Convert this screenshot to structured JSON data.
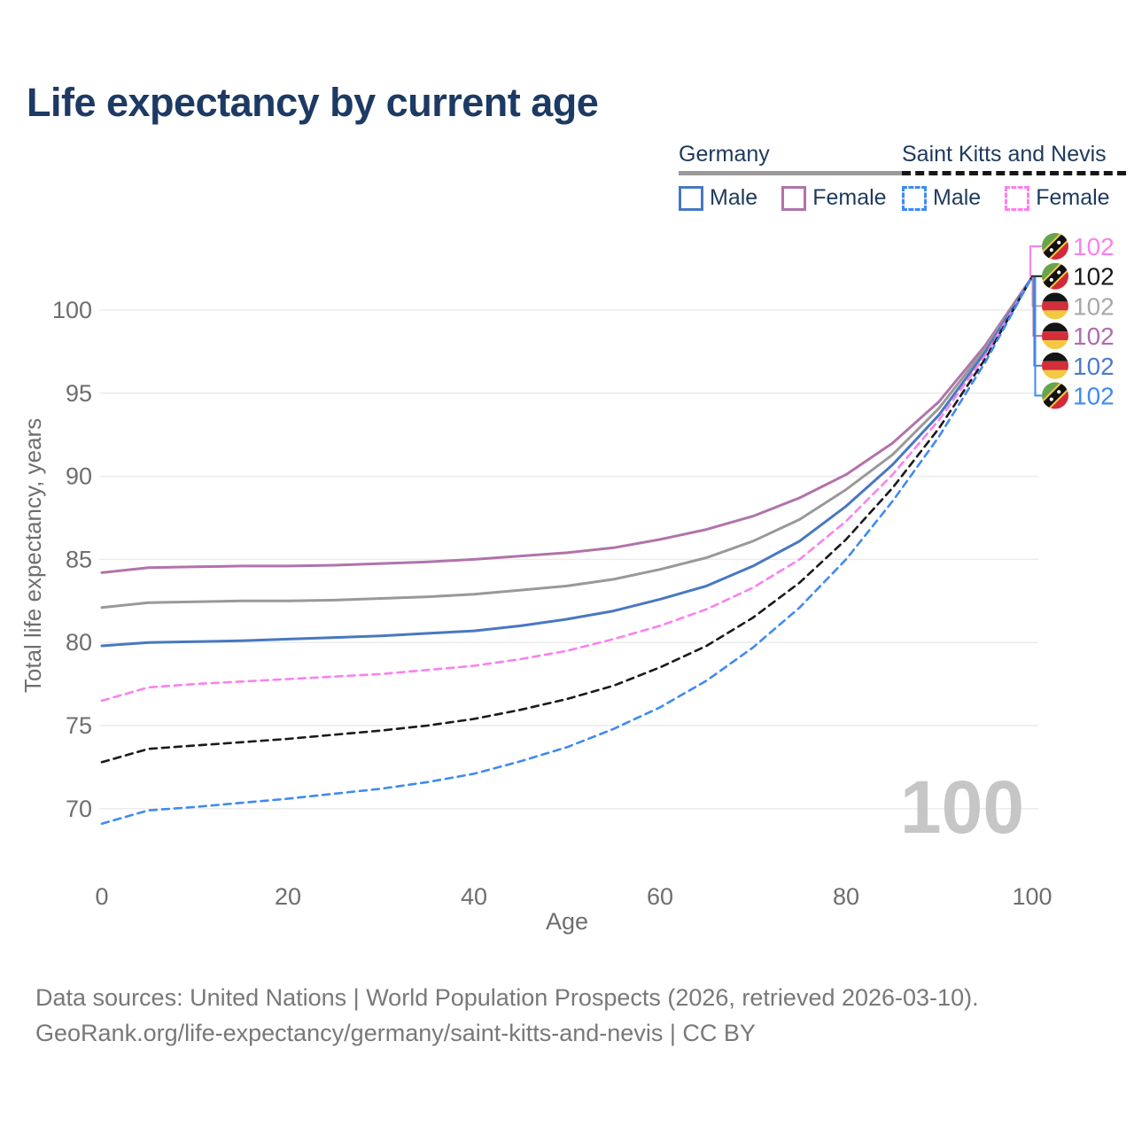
{
  "title": "Life expectancy by current age",
  "legend": {
    "groups": [
      {
        "label": "Germany",
        "line_style": "solid",
        "underline_color": "#9a9a9a",
        "items": [
          {
            "label": "Male",
            "color": "#4878c0"
          },
          {
            "label": "Female",
            "color": "#b173ab"
          }
        ]
      },
      {
        "label": "Saint Kitts and Nevis",
        "line_style": "dashed",
        "underline_color": "#161616",
        "items": [
          {
            "label": "Male",
            "color": "#3f8af3"
          },
          {
            "label": "Female",
            "color": "#fb80ee"
          }
        ]
      }
    ]
  },
  "chart_data": {
    "type": "line",
    "title": "Life expectancy by current age",
    "xlabel": "Age",
    "ylabel": "Total life expectancy, years",
    "xlim": [
      0,
      100
    ],
    "ylim": [
      68,
      103.5
    ],
    "x_ticks": [
      0,
      20,
      40,
      60,
      80,
      100
    ],
    "y_ticks": [
      70,
      75,
      80,
      85,
      90,
      95,
      100
    ],
    "grid": "horizontal-only",
    "gridline_color": "#ececec",
    "tick_color": "#6e6e6e",
    "watermark": "100",
    "watermark_color": "#c6c6c6",
    "ages": [
      0,
      5,
      10,
      15,
      20,
      25,
      30,
      35,
      40,
      45,
      50,
      55,
      60,
      65,
      70,
      75,
      80,
      85,
      90,
      95,
      100
    ],
    "series": [
      {
        "name": "Germany Female",
        "country": "germany",
        "sex": "Female",
        "color": "#b173ab",
        "dashed": false,
        "values": [
          84.2,
          84.5,
          84.55,
          84.6,
          84.6,
          84.65,
          84.75,
          84.85,
          85.0,
          85.2,
          85.4,
          85.7,
          86.2,
          86.8,
          87.6,
          88.7,
          90.1,
          92.0,
          94.5,
          97.9,
          102
        ]
      },
      {
        "name": "Germany Both sexes",
        "country": "germany",
        "sex": "Both",
        "color": "#999999",
        "dashed": false,
        "values": [
          82.1,
          82.4,
          82.45,
          82.5,
          82.5,
          82.55,
          82.65,
          82.75,
          82.9,
          83.15,
          83.4,
          83.8,
          84.4,
          85.1,
          86.1,
          87.4,
          89.2,
          91.3,
          94.1,
          97.7,
          102
        ]
      },
      {
        "name": "Germany Male",
        "country": "germany",
        "sex": "Male",
        "color": "#4878c0",
        "dashed": false,
        "values": [
          79.8,
          80.0,
          80.05,
          80.1,
          80.2,
          80.3,
          80.4,
          80.55,
          80.7,
          81.0,
          81.4,
          81.9,
          82.6,
          83.4,
          84.6,
          86.1,
          88.2,
          90.7,
          93.7,
          97.5,
          102
        ]
      },
      {
        "name": "Saint Kitts and Nevis Female",
        "country": "saint-kitts-and-nevis",
        "sex": "Female",
        "color": "#fb80ee",
        "dashed": true,
        "values": [
          76.5,
          77.3,
          77.5,
          77.65,
          77.8,
          77.95,
          78.1,
          78.35,
          78.6,
          79.0,
          79.5,
          80.2,
          81.0,
          82.0,
          83.3,
          85.0,
          87.3,
          90.1,
          93.4,
          97.3,
          102
        ]
      },
      {
        "name": "Saint Kitts and Nevis Both sexes",
        "country": "saint-kitts-and-nevis",
        "sex": "Both",
        "color": "#1a1a1a",
        "dashed": true,
        "values": [
          72.8,
          73.6,
          73.8,
          74.0,
          74.2,
          74.45,
          74.7,
          75.0,
          75.4,
          75.95,
          76.6,
          77.4,
          78.5,
          79.8,
          81.5,
          83.6,
          86.2,
          89.3,
          92.9,
          97.1,
          102
        ]
      },
      {
        "name": "Saint Kitts and Nevis Male",
        "country": "saint-kitts-and-nevis",
        "sex": "Male",
        "color": "#3f8af3",
        "dashed": true,
        "values": [
          69.1,
          69.9,
          70.1,
          70.35,
          70.6,
          70.9,
          71.2,
          71.6,
          72.1,
          72.85,
          73.7,
          74.8,
          76.1,
          77.7,
          79.7,
          82.1,
          85.0,
          88.5,
          92.4,
          96.9,
          102
        ]
      }
    ],
    "end_labels": [
      {
        "flag": "saint-kitts-and-nevis",
        "value": "102",
        "color": "#fb80ee",
        "series": "Saint Kitts and Nevis Female"
      },
      {
        "flag": "saint-kitts-and-nevis",
        "value": "102",
        "color": "#1a1a1a",
        "series": "Saint Kitts and Nevis Both sexes"
      },
      {
        "flag": "germany",
        "value": "102",
        "color": "#a8a8a8",
        "series": "Germany Both sexes"
      },
      {
        "flag": "germany",
        "value": "102",
        "color": "#b06bad",
        "series": "Germany Female"
      },
      {
        "flag": "germany",
        "value": "102",
        "color": "#4a7cc9",
        "series": "Germany Male"
      },
      {
        "flag": "saint-kitts-and-nevis",
        "value": "102",
        "color": "#3f8af3",
        "series": "Saint Kitts and Nevis Male"
      }
    ]
  },
  "footer": {
    "line1": "Data sources: United Nations | World Population Prospects (2026, retrieved 2026-03-10).",
    "line2": "GeoRank.org/life-expectancy/germany/saint-kitts-and-nevis | CC BY"
  }
}
